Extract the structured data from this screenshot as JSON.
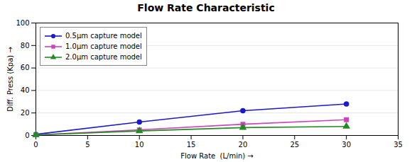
{
  "chart_data": {
    "type": "line",
    "title": "Flow Rate Characteristic",
    "xlabel": "Flow Rate  (L/min)",
    "ylabel": "Diff. Press (Kpa)",
    "xlim": [
      0,
      35
    ],
    "ylim": [
      0,
      100
    ],
    "xticks": [
      0,
      5,
      10,
      15,
      20,
      25,
      30,
      35
    ],
    "yticks": [
      0,
      20,
      40,
      60,
      80,
      100
    ],
    "grid": "y",
    "legend": "upper left",
    "x": [
      0,
      10,
      20,
      30
    ],
    "series": [
      {
        "name": "0.5μm capture model",
        "color": "#1a1acc",
        "marker": "circle",
        "values": [
          1,
          12,
          22,
          28
        ]
      },
      {
        "name": "1.0μm capture model",
        "color": "#cc44bb",
        "marker": "square",
        "values": [
          0.5,
          5,
          10,
          14
        ]
      },
      {
        "name": "2.0μm capture model",
        "color": "#228B22",
        "marker": "triangle",
        "values": [
          0.5,
          4,
          7,
          8
        ]
      }
    ]
  }
}
